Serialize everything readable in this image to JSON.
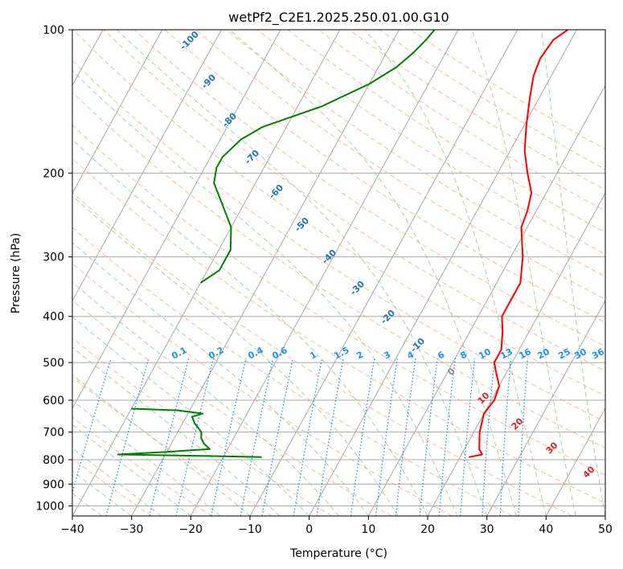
{
  "chart_data": {
    "type": "line",
    "subtype": "skew-t log-p",
    "title": "wetPf2_C2E1.2025.250.01.00.G10",
    "xlabel": "Temperature (°C)",
    "ylabel": "Pressure (hPa)",
    "xlim": [
      -40,
      50
    ],
    "ylim": [
      1050,
      100
    ],
    "y_scale": "log",
    "grid": true,
    "x_ticks": [
      -40,
      -30,
      -20,
      -10,
      0,
      10,
      20,
      30,
      40,
      50
    ],
    "y_ticks": [
      100,
      200,
      300,
      400,
      500,
      600,
      700,
      800,
      900,
      1000
    ],
    "series": [
      {
        "color": "#ff0000",
        "points": [
          {
            "p": 790,
            "t": 21.5
          },
          {
            "p": 780,
            "t": 23.5
          },
          {
            "p": 760,
            "t": 22.5
          },
          {
            "p": 700,
            "t": 21.0
          },
          {
            "p": 640,
            "t": 20.0
          },
          {
            "p": 600,
            "t": 20.5
          },
          {
            "p": 560,
            "t": 20.0
          },
          {
            "p": 520,
            "t": 18.0
          },
          {
            "p": 500,
            "t": 17.0
          },
          {
            "p": 470,
            "t": 17.0
          },
          {
            "p": 430,
            "t": 15.5
          },
          {
            "p": 400,
            "t": 14.0
          },
          {
            "p": 370,
            "t": 14.0
          },
          {
            "p": 340,
            "t": 14.0
          },
          {
            "p": 300,
            "t": 12.0
          },
          {
            "p": 260,
            "t": 9.0
          },
          {
            "p": 240,
            "t": 8.5
          },
          {
            "p": 220,
            "t": 7.5
          },
          {
            "p": 200,
            "t": 5.0
          },
          {
            "p": 180,
            "t": 2.5
          },
          {
            "p": 160,
            "t": 0.5
          },
          {
            "p": 140,
            "t": -1.5
          },
          {
            "p": 125,
            "t": -3.0
          },
          {
            "p": 115,
            "t": -3.5
          },
          {
            "p": 105,
            "t": -3.0
          },
          {
            "p": 100,
            "t": -1.5
          }
        ]
      },
      {
        "color": "#008000",
        "points": [
          {
            "p": 790,
            "t": -13.5
          },
          {
            "p": 785,
            "t": -24.0
          },
          {
            "p": 780,
            "t": -38.0
          },
          {
            "p": 770,
            "t": -30.0
          },
          {
            "p": 760,
            "t": -23.0
          },
          {
            "p": 740,
            "t": -24.5
          },
          {
            "p": 720,
            "t": -25.5
          },
          {
            "p": 700,
            "t": -26.0
          },
          {
            "p": 670,
            "t": -28.0
          },
          {
            "p": 650,
            "t": -29.0
          },
          {
            "p": 640,
            "t": -27.5
          },
          {
            "p": 630,
            "t": -32.0
          },
          {
            "p": 625,
            "t": -40.0
          }
        ]
      },
      {
        "color": "#008000",
        "points": [
          {
            "p": 340,
            "t": -40.0
          },
          {
            "p": 320,
            "t": -38.0
          },
          {
            "p": 290,
            "t": -38.0
          },
          {
            "p": 260,
            "t": -40.0
          },
          {
            "p": 230,
            "t": -44.0
          },
          {
            "p": 210,
            "t": -47.0
          },
          {
            "p": 195,
            "t": -48.0
          },
          {
            "p": 185,
            "t": -48.0
          },
          {
            "p": 170,
            "t": -46.5
          },
          {
            "p": 160,
            "t": -44.0
          },
          {
            "p": 145,
            "t": -36.0
          },
          {
            "p": 130,
            "t": -30.0
          },
          {
            "p": 120,
            "t": -27.0
          },
          {
            "p": 112,
            "t": -25.5
          },
          {
            "p": 105,
            "t": -24.5
          },
          {
            "p": 100,
            "t": -24.0
          }
        ]
      }
    ],
    "mixing_ratio_labels": [
      "0.1",
      "0.2",
      "0.4",
      "0.6",
      "1",
      "1.5",
      "2",
      "3",
      "4",
      "6",
      "8",
      "10",
      "13",
      "16",
      "20",
      "25",
      "30",
      "36"
    ],
    "mixing_ratio_values": [
      0.1,
      0.2,
      0.4,
      0.6,
      1,
      1.5,
      2,
      3,
      4,
      6,
      8,
      10,
      13,
      16,
      20,
      25,
      30,
      36
    ],
    "dry_adiabat_labels": [
      "-100",
      "-90",
      "-80",
      "-70",
      "-60",
      "-50",
      "-40",
      "-30",
      "-20",
      "-10"
    ],
    "moist_adiabat_labels": [
      "0",
      "10",
      "20",
      "30",
      "40"
    ],
    "colors": {
      "temperature": "#ff0000",
      "dewpoint": "#008000",
      "isotherm": "#aaaaaa",
      "dry_adiabat": "#ffa07a",
      "moist_adiabat": "#8fc98f",
      "mixing_ratio": "#1e90ff",
      "dry_label": "#1f77b4",
      "moist_label": "#d62728",
      "zero_label": "#888888"
    }
  }
}
